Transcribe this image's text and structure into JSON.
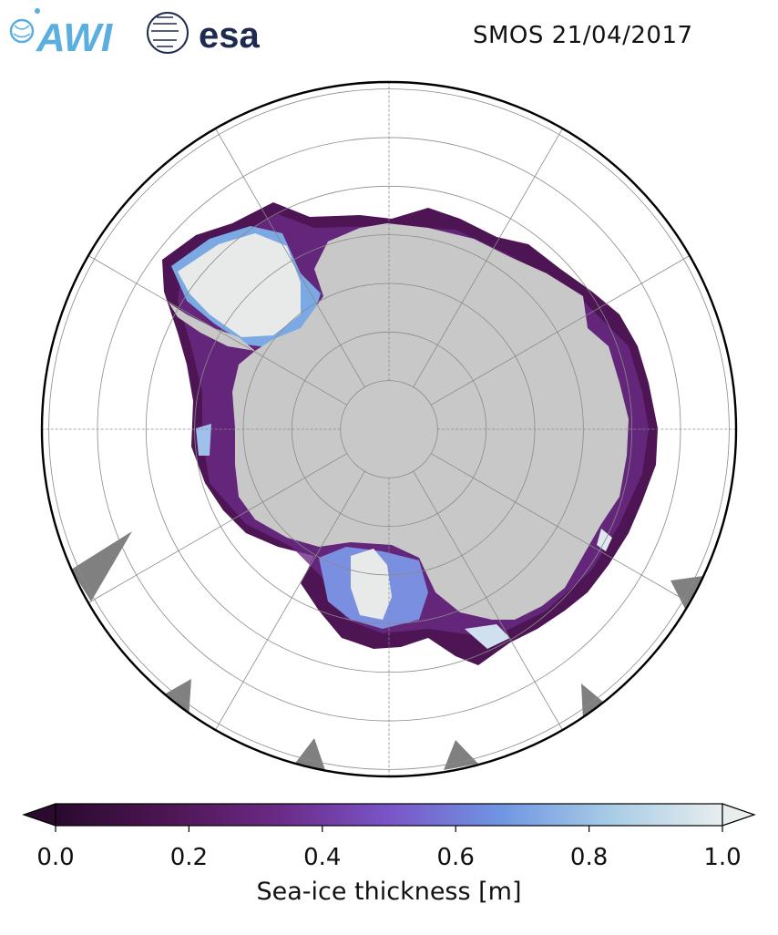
{
  "title": "SMOS 21/04/2017",
  "logos": {
    "awi": {
      "text": "AWI",
      "color": "#5aaee0"
    },
    "esa": {
      "text": "esa",
      "color": "#1f2a4f"
    }
  },
  "map": {
    "projection": "south-polar-stereographic",
    "land_color": "#c8c8c8",
    "no_data_color": "#808080",
    "graticule_color": "#8a8a8a",
    "latitude_circles": 7,
    "meridians": 12
  },
  "colorbar": {
    "label": "Sea-ice thickness [m]",
    "ticks": [
      "0.0",
      "0.2",
      "0.4",
      "0.6",
      "0.8",
      "1.0"
    ],
    "range": [
      0.0,
      1.0
    ],
    "extend": "both",
    "colors": [
      "#2a0a2e",
      "#4d1553",
      "#6a2a86",
      "#7a55c8",
      "#6f95e2",
      "#a8cce6",
      "#e8eeee"
    ]
  }
}
